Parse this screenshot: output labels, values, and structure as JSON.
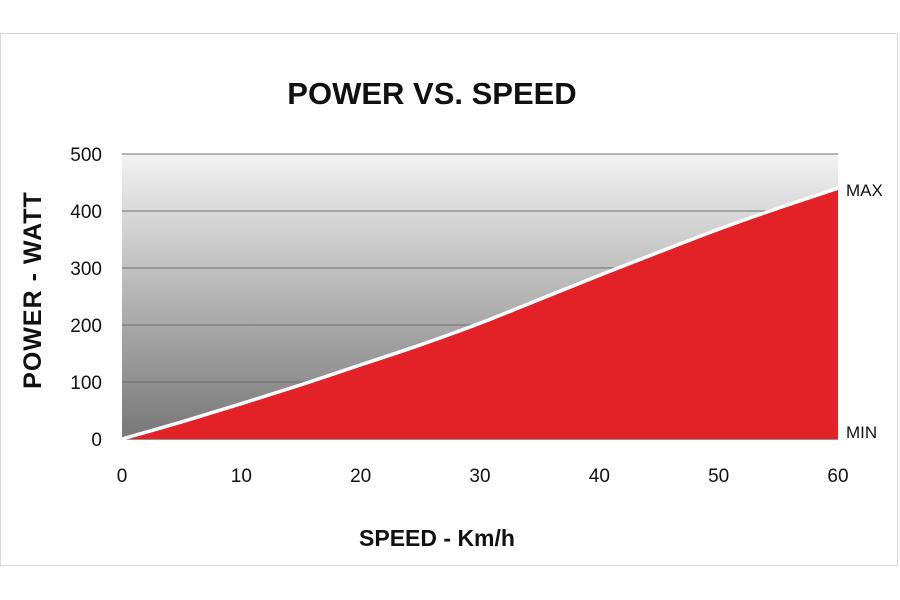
{
  "chart_data": {
    "type": "area",
    "title": "POWER VS. SPEED",
    "xlabel": "SPEED - Km/h",
    "ylabel": "POWER - WATT",
    "xlim": [
      0,
      60
    ],
    "ylim": [
      0,
      500
    ],
    "xticks": [
      0,
      10,
      20,
      30,
      40,
      50,
      60
    ],
    "yticks": [
      0,
      100,
      200,
      300,
      400,
      500
    ],
    "grid": true,
    "series": [
      {
        "x": [
          0,
          5,
          10,
          15,
          20,
          25,
          30,
          35,
          40,
          45,
          50,
          55,
          60
        ],
        "values": [
          0,
          30,
          62,
          95,
          130,
          165,
          203,
          245,
          287,
          328,
          368,
          405,
          440
        ],
        "color": "#e32227"
      }
    ],
    "annotations": {
      "max_label": "MAX",
      "min_label": "MIN"
    },
    "colors": {
      "fill": "#e32227",
      "line": "#ffffff",
      "background_top": "#f2f2f2",
      "background_bottom": "#777777",
      "grid": "#6e6e6e"
    }
  }
}
